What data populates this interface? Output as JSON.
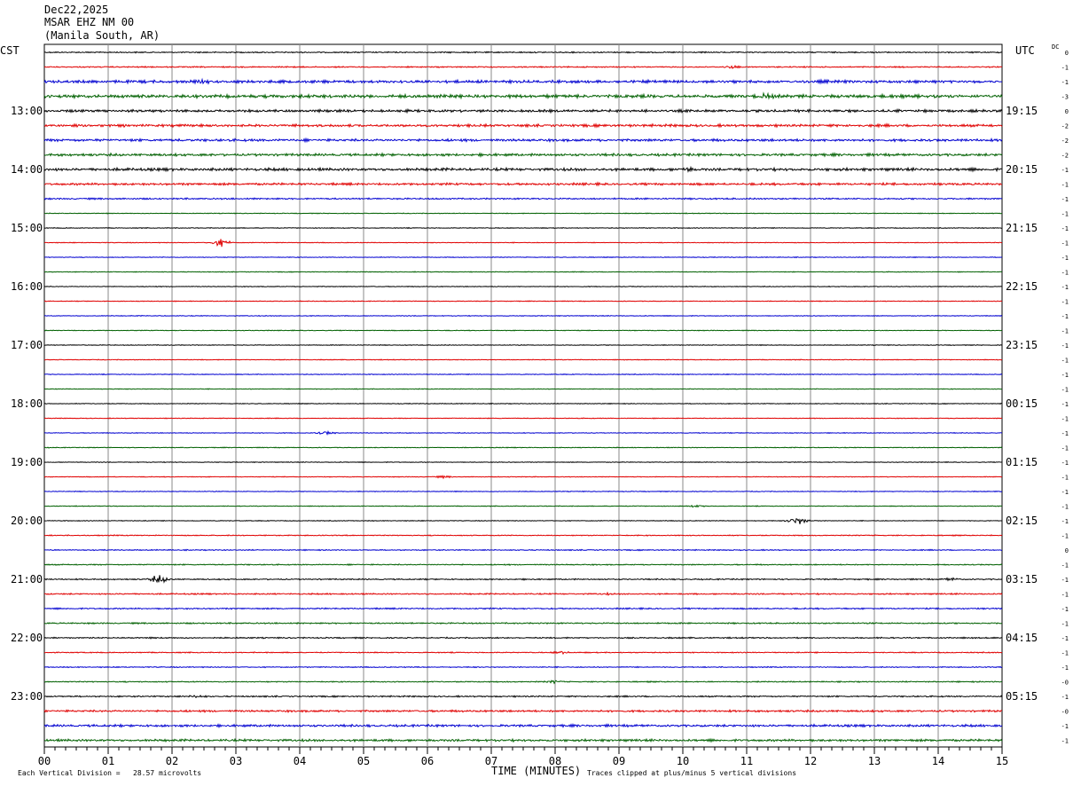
{
  "header": {
    "date": "Dec22,2025",
    "station": "MSAR EHZ NM 00",
    "location": "(Manila South, AR)"
  },
  "left_timezone": "CST",
  "right_timezone": "UTC",
  "dc_label": "DC",
  "footer": {
    "scale_text": "Each Vertical Division =   28.57 microvolts",
    "xlabel": "TIME (MINUTES)",
    "clip_text": "Traces clipped at plus/minus 5 vertical divisions"
  },
  "chart_data": {
    "type": "line",
    "title": "",
    "xlabel": "TIME (MINUTES)",
    "xlim": [
      0,
      15
    ],
    "x_ticks": [
      "00",
      "01",
      "02",
      "03",
      "04",
      "05",
      "06",
      "07",
      "08",
      "09",
      "10",
      "11",
      "12",
      "13",
      "14",
      "15"
    ],
    "left_hour_labels": [
      "13:00",
      "14:00",
      "15:00",
      "16:00",
      "17:00",
      "18:00",
      "19:00",
      "20:00",
      "21:00",
      "22:00",
      "23:00"
    ],
    "right_hour_labels": [
      "19:15",
      "20:15",
      "21:15",
      "22:15",
      "23:15",
      "00:15",
      "01:15",
      "02:15",
      "03:15",
      "04:15",
      "05:15"
    ],
    "trace_colors": [
      "#000000",
      "#e00000",
      "#0000d0",
      "#006000"
    ],
    "trace_count": 48,
    "first_labeled_trace": 4,
    "traces_per_hour": 4,
    "dc_offsets": [
      "0",
      "-1",
      "-1",
      "-3",
      "0",
      "-2",
      "-2",
      "-2",
      "-1",
      "-1",
      "-1",
      "-1",
      "-1",
      "-1",
      "-1",
      "-1",
      "-1",
      "-1",
      "-1",
      "-1",
      "-1",
      "-1",
      "-1",
      "-1",
      "-1",
      "-1",
      "-1",
      "-1",
      "-1",
      "-1",
      "-1",
      "-1",
      "-1",
      "-1",
      "0",
      "-1",
      "-1",
      "-1",
      "-1",
      "-1",
      "-1",
      "-1",
      "-1",
      "-0",
      "-1",
      "-0",
      "-1",
      "-1"
    ],
    "amplitude_levels": [
      1,
      1,
      2.2,
      2.5,
      2,
      2,
      2,
      2,
      2.2,
      1.8,
      1.2,
      0.6,
      0.6,
      0.6,
      0.6,
      0.6,
      0.6,
      0.6,
      0.6,
      0.6,
      0.6,
      0.6,
      0.6,
      0.6,
      0.6,
      0.6,
      0.6,
      0.6,
      0.6,
      0.6,
      0.6,
      0.6,
      0.6,
      0.8,
      0.8,
      0.9,
      1,
      1.1,
      1.1,
      1.1,
      1,
      0.8,
      0.8,
      0.9,
      1.1,
      1.6,
      1.8,
      1.8
    ],
    "events": [
      {
        "trace": 1,
        "minute": 10.75,
        "amplitude": 3
      },
      {
        "trace": 2,
        "minute": 2.5,
        "amplitude": 4
      },
      {
        "trace": 3,
        "minute": 11.3,
        "amplitude": 6
      },
      {
        "trace": 8,
        "minute": 10.05,
        "amplitude": 5
      },
      {
        "trace": 13,
        "minute": 2.75,
        "amplitude": 6
      },
      {
        "trace": 26,
        "minute": 4.4,
        "amplitude": 3
      },
      {
        "trace": 29,
        "minute": 6.25,
        "amplitude": 2
      },
      {
        "trace": 31,
        "minute": 10.2,
        "amplitude": 2
      },
      {
        "trace": 32,
        "minute": 11.8,
        "amplitude": 7
      },
      {
        "trace": 36,
        "minute": 1.8,
        "amplitude": 7
      },
      {
        "trace": 36,
        "minute": 14.2,
        "amplitude": 3
      },
      {
        "trace": 37,
        "minute": 8.8,
        "amplitude": 2
      },
      {
        "trace": 41,
        "minute": 8.1,
        "amplitude": 3
      },
      {
        "trace": 43,
        "minute": 8.0,
        "amplitude": 3
      },
      {
        "trace": 44,
        "minute": 2.4,
        "amplitude": 3
      }
    ]
  }
}
